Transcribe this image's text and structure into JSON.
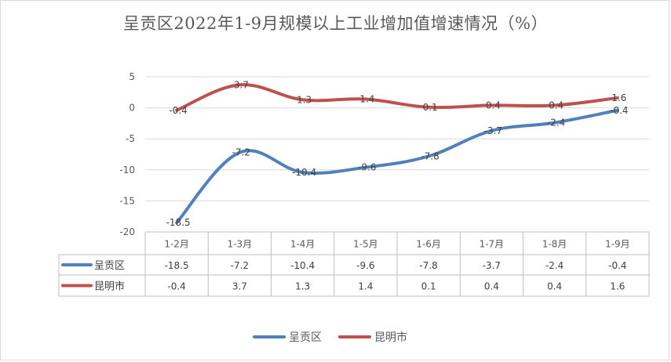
{
  "chart_data": {
    "type": "line",
    "title": "呈贡区2022年1-9月规模以上工业增加值增速情况（%）",
    "categories": [
      "1-2月",
      "1-3月",
      "1-4月",
      "1-5月",
      "1-6月",
      "1-7月",
      "1-8月",
      "1-9月"
    ],
    "series": [
      {
        "name": "呈贡区",
        "values": [
          -18.5,
          -7.2,
          -10.4,
          -9.6,
          -7.8,
          -3.7,
          -2.4,
          -0.4
        ],
        "color": "#4f81bd"
      },
      {
        "name": "昆明市",
        "values": [
          -0.4,
          3.7,
          1.3,
          1.4,
          0.1,
          0.4,
          0.4,
          1.6
        ],
        "color": "#c0504d"
      }
    ],
    "ylim": [
      -20,
      5
    ],
    "yticks": [
      5,
      0,
      -5,
      -10,
      -15,
      -20
    ],
    "grid": true,
    "data_table": true,
    "legend_position": "bottom"
  }
}
